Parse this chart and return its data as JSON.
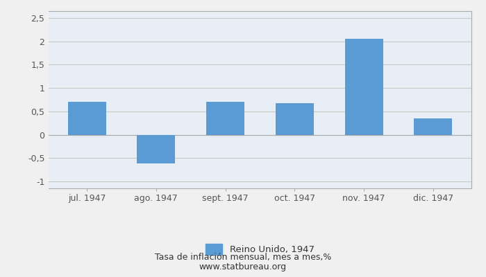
{
  "categories": [
    "jul. 1947",
    "ago. 1947",
    "sept. 1947",
    "oct. 1947",
    "nov. 1947",
    "dic. 1947"
  ],
  "values": [
    0.7,
    -0.62,
    0.7,
    0.68,
    2.06,
    0.35
  ],
  "bar_color": "#5B9BD5",
  "ylim": [
    -1.15,
    2.65
  ],
  "yticks": [
    -1.0,
    -0.5,
    0.0,
    0.5,
    1.0,
    1.5,
    2.0,
    2.5
  ],
  "ytick_labels": [
    "-1",
    "-0,5",
    "0",
    "0,5",
    "1",
    "1,5",
    "2",
    "2,5"
  ],
  "legend_label": "Reino Unido, 1947",
  "footer_line1": "Tasa de inflación mensual, mes a mes,%",
  "footer_line2": "www.statbureau.org",
  "background_color": "#f0f0f0",
  "plot_bg_color": "#e8eef5",
  "grid_color": "#c8c8c8",
  "bar_width": 0.55,
  "tick_color": "#555555",
  "text_color": "#333333",
  "spine_color": "#aaaaaa"
}
